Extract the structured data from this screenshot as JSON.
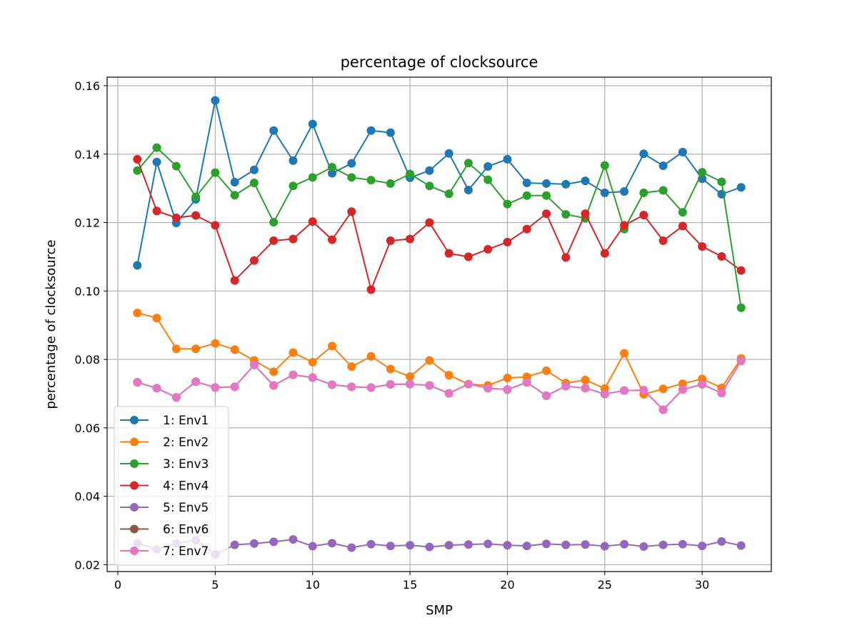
{
  "chart_data": {
    "type": "line",
    "title": "percentage of clocksource",
    "xlabel": "SMP",
    "ylabel": "percentage of clocksource",
    "xlim": [
      -0.55,
      33.55
    ],
    "ylim": [
      0.018,
      0.1625
    ],
    "xticks": [
      0,
      5,
      10,
      15,
      20,
      25,
      30
    ],
    "yticks": [
      0.02,
      0.04,
      0.06,
      0.08,
      0.1,
      0.12,
      0.14,
      0.16
    ],
    "ytick_labels": [
      "0.02",
      "0.04",
      "0.06",
      "0.08",
      "0.10",
      "0.12",
      "0.14",
      "0.16"
    ],
    "grid": true,
    "legend_position": "lower-left",
    "x": [
      1,
      2,
      3,
      4,
      5,
      6,
      7,
      8,
      9,
      10,
      11,
      12,
      13,
      14,
      15,
      16,
      17,
      18,
      19,
      20,
      21,
      22,
      23,
      24,
      25,
      26,
      27,
      28,
      29,
      30,
      31,
      32
    ],
    "series": [
      {
        "name": "1: Env1",
        "color": "#1f77b4",
        "values": [
          0.1075,
          0.1377,
          0.1199,
          0.1268,
          0.1557,
          0.1318,
          0.1354,
          0.1469,
          0.1381,
          0.1488,
          0.1344,
          0.1373,
          0.1469,
          0.1463,
          0.1331,
          0.1352,
          0.1402,
          0.1295,
          0.1364,
          0.1385,
          0.1316,
          0.1314,
          0.1312,
          0.1322,
          0.1287,
          0.1291,
          0.1401,
          0.1366,
          0.1406,
          0.1328,
          0.1283,
          0.1303
        ]
      },
      {
        "name": "2: Env2",
        "color": "#ff7f0e",
        "values": [
          0.0936,
          0.0921,
          0.0831,
          0.0831,
          0.0847,
          0.0829,
          0.0797,
          0.0764,
          0.082,
          0.0792,
          0.0839,
          0.0779,
          0.0809,
          0.0772,
          0.075,
          0.0797,
          0.0754,
          0.0728,
          0.0724,
          0.0746,
          0.0749,
          0.0767,
          0.0731,
          0.074,
          0.0715,
          0.0818,
          0.0698,
          0.0714,
          0.0729,
          0.0743,
          0.0717,
          0.0803
        ]
      },
      {
        "name": "3: Env3",
        "color": "#2ca02c",
        "values": [
          0.1352,
          0.1419,
          0.1365,
          0.1275,
          0.1346,
          0.128,
          0.1316,
          0.1201,
          0.1307,
          0.1332,
          0.1362,
          0.1332,
          0.1324,
          0.1314,
          0.1342,
          0.1307,
          0.1284,
          0.1374,
          0.1325,
          0.1254,
          0.1279,
          0.1279,
          0.1224,
          0.1213,
          0.1367,
          0.1181,
          0.1287,
          0.1294,
          0.123,
          0.1347,
          0.1319,
          0.0951
        ]
      },
      {
        "name": "4: Env4",
        "color": "#d62728",
        "values": [
          0.1385,
          0.1234,
          0.1214,
          0.1221,
          0.1192,
          0.1031,
          0.1089,
          0.1147,
          0.1152,
          0.1203,
          0.115,
          0.1232,
          0.1004,
          0.1147,
          0.1152,
          0.12,
          0.111,
          0.11,
          0.1122,
          0.1143,
          0.1181,
          0.1226,
          0.1098,
          0.1226,
          0.111,
          0.1192,
          0.1222,
          0.1147,
          0.119,
          0.113,
          0.1101,
          0.106
        ]
      },
      {
        "name": "5: Env5",
        "color": "#9467bd",
        "values": [
          0.0263,
          0.0245,
          0.0262,
          0.0272,
          0.023,
          0.0258,
          0.0262,
          0.0267,
          0.0274,
          0.0254,
          0.0263,
          0.025,
          0.026,
          0.0255,
          0.0257,
          0.0252,
          0.0257,
          0.0259,
          0.0261,
          0.0257,
          0.0255,
          0.0261,
          0.0258,
          0.0259,
          0.0254,
          0.026,
          0.0253,
          0.0258,
          0.026,
          0.0255,
          0.0268,
          0.0256
        ]
      },
      {
        "name": "6: Env6",
        "color": "#8c564b",
        "values": [
          0.0733,
          0.0716,
          0.0689,
          0.0735,
          0.0718,
          0.072,
          0.0784,
          0.0724,
          0.0755,
          0.0747,
          0.0726,
          0.072,
          0.0718,
          0.0727,
          0.0728,
          0.0724,
          0.0701,
          0.0728,
          0.0716,
          0.0712,
          0.0733,
          0.0694,
          0.0722,
          0.0716,
          0.0699,
          0.0709,
          0.071,
          0.0653,
          0.0712,
          0.0727,
          0.0702,
          0.0796
        ]
      },
      {
        "name": "7: Env7",
        "color": "#e377c2",
        "values": [
          0.0733,
          0.0716,
          0.0689,
          0.0735,
          0.0718,
          0.072,
          0.0784,
          0.0724,
          0.0755,
          0.0747,
          0.0726,
          0.072,
          0.0718,
          0.0727,
          0.0728,
          0.0724,
          0.0701,
          0.0728,
          0.0716,
          0.0712,
          0.0733,
          0.0694,
          0.0722,
          0.0716,
          0.0699,
          0.0709,
          0.071,
          0.0653,
          0.0712,
          0.0727,
          0.0702,
          0.0796
        ]
      }
    ]
  }
}
